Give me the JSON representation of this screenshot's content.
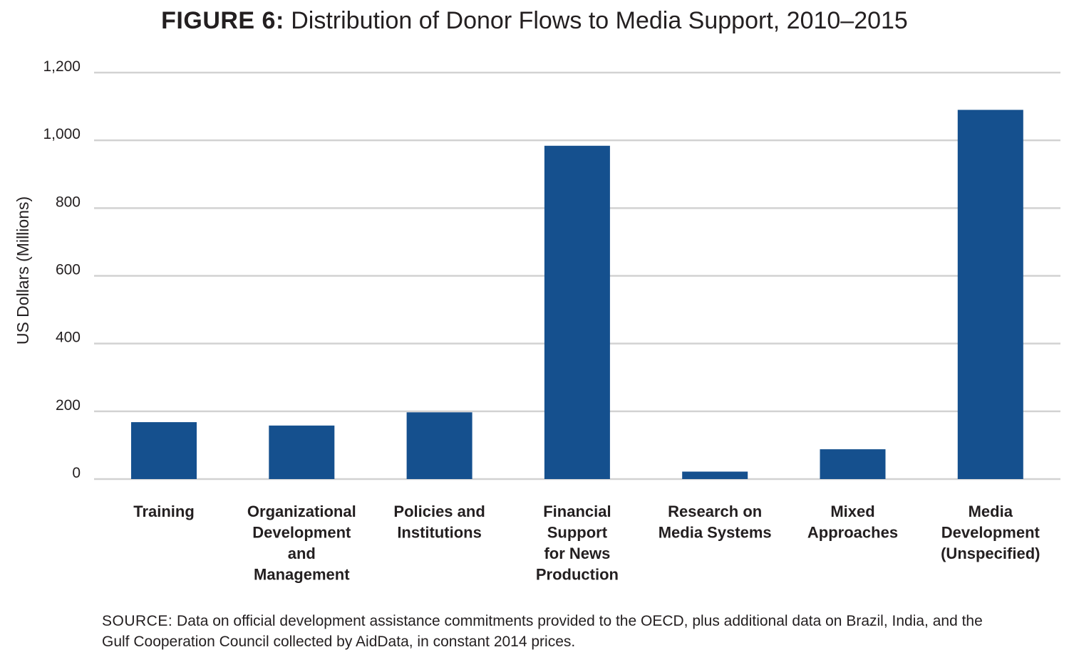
{
  "figure": {
    "label": "FIGURE 6:",
    "title": "Distribution of Donor Flows to Media Support, 2010–2015"
  },
  "source": {
    "label": "SOURCE:",
    "text": "Data on official development assistance commitments provided to the OECD, plus additional data on Brazil, India, and the Gulf Cooperation Council collected by AidData, in constant 2014 prices."
  },
  "colors": {
    "bar": "#15508e",
    "grid": "#d2d2d2",
    "text": "#231f20"
  },
  "chart_data": {
    "type": "bar",
    "title": "Distribution of Donor Flows to Media Support, 2010–2015",
    "xlabel": "",
    "ylabel": "US Dollars (Millions)",
    "ylim": [
      0,
      1200
    ],
    "yticks": [
      0,
      200,
      400,
      600,
      800,
      1000,
      1200
    ],
    "ytick_labels": [
      "0",
      "200",
      "400",
      "600",
      "800",
      "1,000",
      "1,200"
    ],
    "grid": true,
    "legend": "none",
    "categories": [
      "Training",
      "Organizational Development and Management",
      "Policies and Institutions",
      "Financial Support for News Production",
      "Research on Media Systems",
      "Mixed Approaches",
      "Media Development (Unspecified)"
    ],
    "category_lines": [
      [
        "Training"
      ],
      [
        "Organizational",
        "Development",
        "and",
        "Management"
      ],
      [
        "Policies and",
        "Institutions"
      ],
      [
        "Financial",
        "Support",
        "for News",
        "Production"
      ],
      [
        "Research on",
        "Media Systems"
      ],
      [
        "Mixed",
        "Approaches"
      ],
      [
        "Media",
        "Development",
        "(Unspecified)"
      ]
    ],
    "values": [
      168,
      158,
      197,
      984,
      22,
      88,
      1090
    ]
  }
}
